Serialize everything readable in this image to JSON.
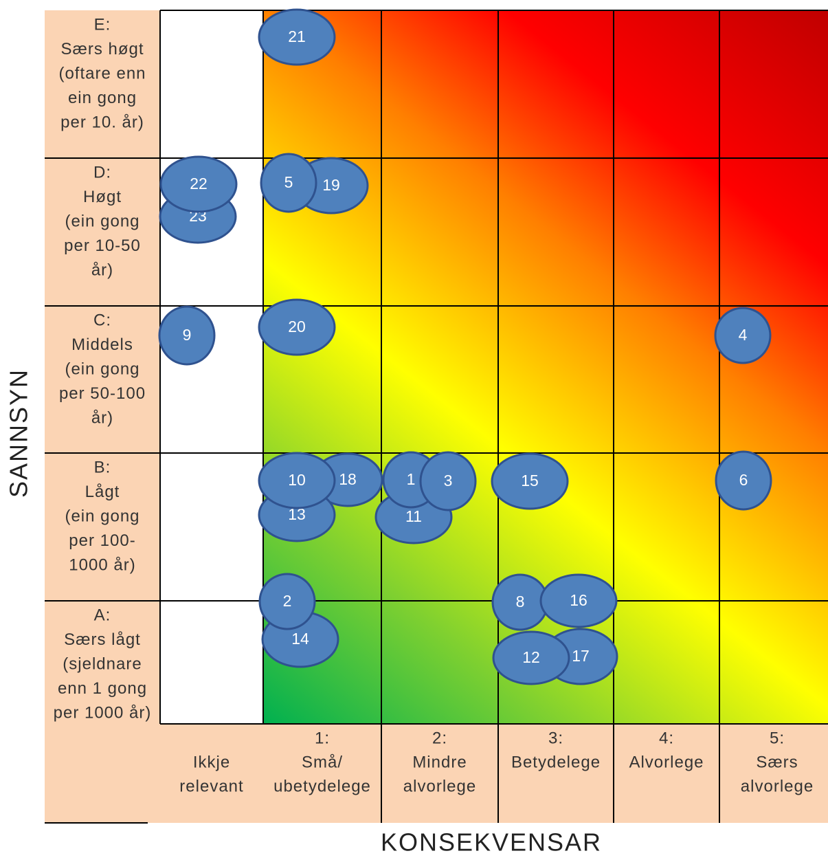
{
  "y_axis_title": "SANNSYN",
  "x_axis_title": "KONSEKVENSAR",
  "rows": [
    {
      "code": "E:",
      "lines": [
        "Særs høgt",
        "(oftare enn",
        "ein gong",
        "per 10. år)"
      ]
    },
    {
      "code": "D:",
      "lines": [
        "Høgt",
        "(ein gong",
        "per 10-50",
        "år)"
      ]
    },
    {
      "code": "C:",
      "lines": [
        "Middels",
        "(ein gong",
        "per 50-100",
        "år)"
      ]
    },
    {
      "code": "B:",
      "lines": [
        "Lågt",
        "(ein gong",
        "per 100-",
        "1000 år)"
      ]
    },
    {
      "code": "A:",
      "lines": [
        "Særs lågt",
        "(sjeldnare",
        "enn 1 gong",
        "per 1000 år)"
      ]
    }
  ],
  "columns": [
    {
      "lines": [
        "Ikkje",
        "relevant"
      ]
    },
    {
      "code": "1:",
      "lines": [
        "Små/",
        "ubetydelege"
      ]
    },
    {
      "code": "2:",
      "lines": [
        "Mindre",
        "alvorlege"
      ]
    },
    {
      "code": "3:",
      "lines": [
        "Betydelege"
      ]
    },
    {
      "code": "4:",
      "lines": [
        "Alvorlege"
      ]
    },
    {
      "code": "5:",
      "lines": [
        "Særs",
        "alvorlege"
      ]
    }
  ],
  "risks": [
    "19",
    "21",
    "23",
    "22",
    "5",
    "9",
    "20",
    "4",
    "18",
    "13",
    "10",
    "11",
    "1",
    "3",
    "15",
    "6",
    "14",
    "2",
    "8",
    "16",
    "17",
    "12"
  ]
}
